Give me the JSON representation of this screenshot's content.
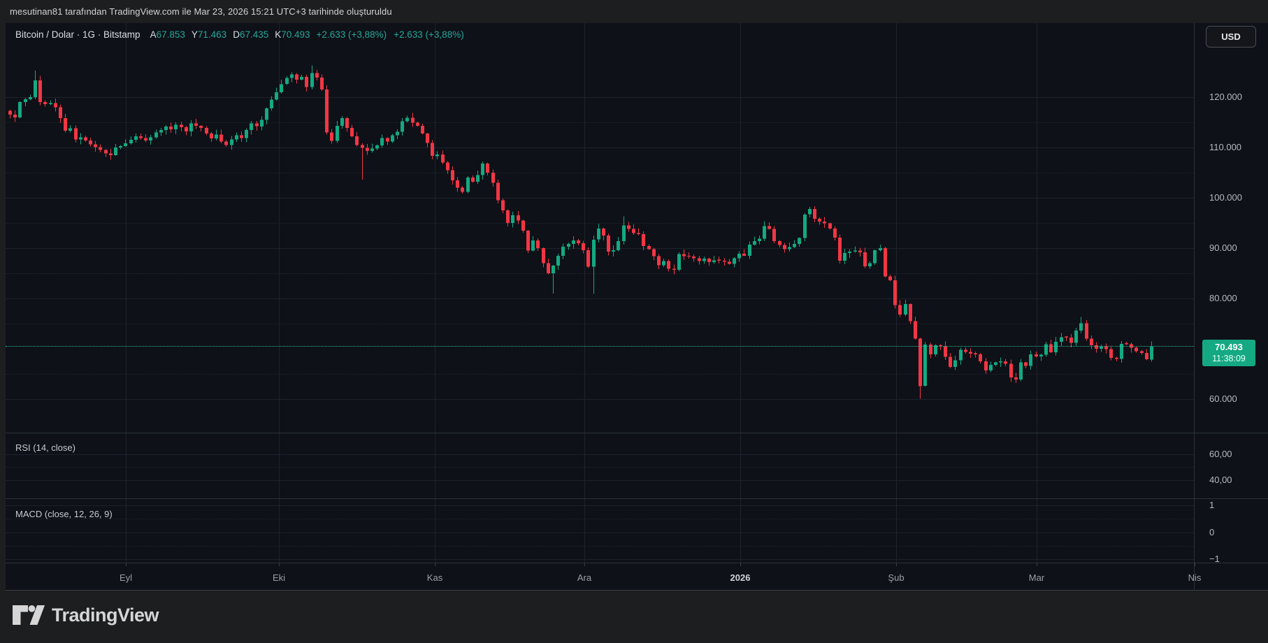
{
  "attribution": "mesutinan81 tarafından TradingView.com ile Mar 23, 2026 15:21 UTC+3 tarihinde oluşturuldu",
  "currency_button": "USD",
  "logo_text": "TradingView",
  "legend": {
    "symbol": "Bitcoin / Dolar · 1G · Bitstamp",
    "ohlc_labels": [
      "A",
      "Y",
      "D",
      "K"
    ],
    "ohlc_values": [
      "67.853",
      "71.463",
      "67.435",
      "70.493"
    ],
    "change": "+2.633 (+3,88%)",
    "change_secondary": "+2.633 (+3,88%)"
  },
  "price_badge": {
    "price": "70.493",
    "time": "11:38:09"
  },
  "indicators": [
    {
      "label": "RSI (14, close)",
      "scale_labels": [
        "60,00",
        "40,00"
      ]
    },
    {
      "label": "MACD (close, 12, 26, 9)",
      "scale_labels": [
        "1",
        "0",
        "−1"
      ]
    }
  ],
  "colors": {
    "up": "#14a982",
    "down": "#f23645",
    "badge": "#14a982",
    "accent_text": "#26a69a"
  },
  "chart_data": {
    "type": "candlestick",
    "title": "Bitcoin / Dolar",
    "interval": "1G",
    "exchange": "Bitstamp",
    "x_tick_labels": [
      "Eyl",
      "Eki",
      "Kas",
      "Ara",
      "2026",
      "Şub",
      "Mar",
      "Nis"
    ],
    "y_tick_labels": [
      "120.000",
      "110.000",
      "100.000",
      "90.000",
      "80.000",
      "60.000"
    ],
    "y_tick_prices_k": [
      120,
      110,
      100,
      90,
      80,
      60
    ],
    "ylim_k": [
      57,
      127
    ],
    "grid": true,
    "last": {
      "open": 67.853,
      "high": 71.463,
      "low": 67.435,
      "close": 70.493
    },
    "first_open_k": 117.3,
    "closes_k": [
      116.5,
      116.0,
      119.0,
      119.6,
      120.0,
      123.3,
      119.0,
      118.6,
      118.8,
      118.0,
      115.8,
      113.3,
      113.8,
      111.6,
      112.0,
      111.4,
      110.6,
      110.1,
      109.5,
      108.8,
      108.5,
      110.0,
      110.3,
      110.8,
      111.5,
      112.2,
      111.9,
      111.4,
      112.0,
      113.0,
      113.5,
      114.2,
      113.6,
      114.5,
      114.0,
      113.2,
      114.8,
      114.3,
      113.9,
      112.8,
      111.8,
      112.6,
      111.2,
      110.5,
      111.6,
      112.4,
      111.9,
      113.5,
      114.8,
      114.2,
      115.5,
      117.8,
      119.5,
      121.0,
      122.6,
      123.8,
      124.5,
      123.5,
      124.0,
      122.0,
      124.8,
      123.9,
      121.5,
      113.0,
      111.3,
      114.3,
      115.8,
      113.9,
      112.2,
      110.5,
      109.9,
      109.3,
      109.8,
      110.4,
      111.9,
      111.2,
      112.4,
      113.1,
      115.2,
      115.9,
      114.9,
      114.3,
      112.8,
      110.9,
      108.3,
      108.6,
      107.0,
      105.5,
      103.5,
      102.0,
      101.2,
      104.0,
      103.2,
      104.5,
      106.8,
      105.0,
      103.0,
      99.5,
      97.5,
      95.0,
      96.5,
      95.5,
      93.5,
      89.5,
      91.5,
      90.0,
      87.0,
      85.0,
      86.5,
      88.5,
      90.3,
      90.8,
      91.5,
      91.0,
      89.6,
      86.3,
      91.7,
      93.9,
      92.5,
      89.3,
      89.6,
      91.4,
      94.5,
      93.8,
      93.0,
      92.8,
      90.4,
      89.8,
      88.4,
      86.6,
      87.4,
      85.9,
      85.7,
      88.8,
      88.4,
      88.3,
      88.0,
      87.4,
      87.9,
      87.2,
      87.6,
      87.5,
      87.3,
      86.9,
      88.0,
      88.9,
      88.5,
      90.7,
      91.4,
      91.9,
      94.4,
      93.8,
      91.4,
      90.6,
      89.8,
      90.2,
      90.8,
      92.0,
      96.7,
      97.8,
      95.8,
      95.3,
      94.9,
      93.9,
      92.1,
      87.5,
      89.0,
      89.3,
      89.5,
      89.2,
      86.4,
      87.0,
      89.6,
      90.0,
      84.4,
      83.6,
      78.7,
      76.8,
      78.9,
      75.5,
      72.0,
      62.6,
      70.8,
      68.9,
      70.7,
      70.5,
      68.4,
      66.4,
      67.7,
      69.8,
      69.4,
      69.0,
      68.9,
      67.5,
      65.7,
      66.8,
      67.3,
      67.5,
      67.0,
      64.3,
      63.9,
      67.3,
      66.6,
      68.9,
      68.5,
      68.8,
      70.9,
      69.3,
      71.4,
      72.3,
      72.2,
      71.2,
      73.6,
      75.1,
      72.0,
      70.7,
      70.0,
      70.5,
      69.9,
      68.2,
      68.0,
      71.0,
      70.9,
      70.2,
      69.5,
      69.2,
      67.9,
      70.493
    ],
    "wick_overrides": {
      "5": {
        "high": 125.3
      },
      "60": {
        "high": 126.3
      },
      "70": {
        "low": 103.6
      },
      "108": {
        "low": 81.0
      },
      "116": {
        "low": 80.9
      },
      "122": {
        "high": 96.3
      },
      "159": {
        "high": 98.2
      },
      "181": {
        "low": 60.1
      },
      "213": {
        "high": 76.3
      }
    },
    "legend_position": "top-left",
    "panes": [
      "price",
      "RSI",
      "MACD"
    ]
  }
}
